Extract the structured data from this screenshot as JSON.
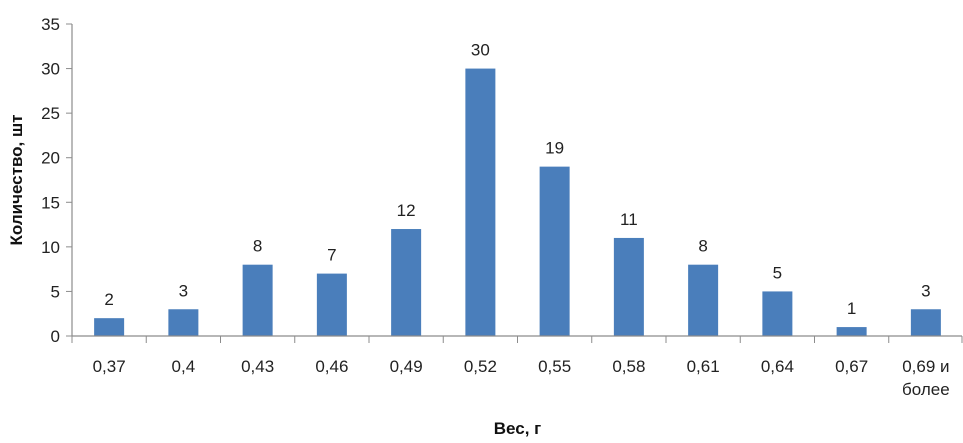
{
  "chart_data": {
    "type": "bar",
    "title": "",
    "xlabel": "Вес, г",
    "ylabel": "Количество, шт",
    "categories": [
      [
        "0,37"
      ],
      [
        "0,4"
      ],
      [
        "0,43"
      ],
      [
        "0,46"
      ],
      [
        "0,49"
      ],
      [
        "0,52"
      ],
      [
        "0,55"
      ],
      [
        "0,58"
      ],
      [
        "0,61"
      ],
      [
        "0,64"
      ],
      [
        "0,67"
      ],
      [
        "0,69 и",
        "более"
      ]
    ],
    "values": [
      2,
      3,
      8,
      7,
      12,
      30,
      19,
      11,
      8,
      5,
      1,
      3
    ],
    "ylim": [
      0,
      35
    ],
    "yticks": [
      "0",
      "5",
      "10",
      "15",
      "20",
      "25",
      "30",
      "35"
    ],
    "grid": false,
    "legend": "none",
    "bar_color": "#4a7ebb",
    "axis_color": "#8c8c8c"
  }
}
